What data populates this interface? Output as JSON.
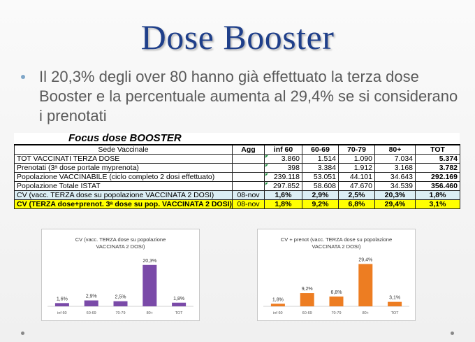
{
  "slide": {
    "title": "Dose Booster",
    "bullet": "Il 20,3% degli over 80 hanno già effettuato la terza dose Booster e la percentuale aumenta al 29,4% se si considerano i prenotati"
  },
  "table": {
    "title": "Focus dose BOOSTER",
    "headers": [
      "Sede Vaccinale",
      "Agg",
      "inf 60",
      "60-69",
      "70-79",
      "80+",
      "TOT"
    ],
    "rows": [
      {
        "label": "TOT VACCINATI TERZA DOSE",
        "agg": "",
        "values": [
          "3.860",
          "1.514",
          "1.090",
          "7.034",
          "5.374"
        ]
      },
      {
        "label": "Prenotati (3ᵃ dose portale myprenota)",
        "agg": "",
        "values": [
          "398",
          "3.384",
          "1.912",
          "3.168",
          "3.782"
        ]
      },
      {
        "label": "Popolazione VACCINABILE (ciclo completo 2 dosi effettuato)",
        "agg": "",
        "values": [
          "239.118",
          "53.051",
          "44.101",
          "34.643",
          "292.169"
        ]
      },
      {
        "label": "Popolazione Totale ISTAT",
        "agg": "",
        "values": [
          "297.852",
          "58.608",
          "47.670",
          "34.539",
          "356.460"
        ]
      },
      {
        "label": "CV (vacc. TERZA dose su popolazione VACCINATA 2 DOSI)",
        "agg": "08-nov",
        "values": [
          "1,6%",
          "2,9%",
          "2,5%",
          "20,3%",
          "1,8%"
        ]
      },
      {
        "label": "CV (TERZA dose+prenot. 3ᵃ dose su pop. VACCINATA 2 DOSI)",
        "agg": "08-nov",
        "values": [
          "1,8%",
          "9,2%",
          "6,8%",
          "29,4%",
          "3,1%"
        ]
      }
    ]
  },
  "chart_data": [
    {
      "type": "bar",
      "title": "CV (vacc. TERZA dose su popolazione VACCINATA 2 DOSI)",
      "categories": [
        "inf 60",
        "60-69",
        "70-79",
        "80+",
        "TOT"
      ],
      "values": [
        1.6,
        2.9,
        2.5,
        20.3,
        1.8
      ],
      "labels": [
        "1,6%",
        "2,9%",
        "2,5%",
        "20,3%",
        "1,8%"
      ],
      "color": "#7a4aa8",
      "ylim": [
        0,
        24
      ],
      "grid": false
    },
    {
      "type": "bar",
      "title": "CV + prenot (vacc. TERZA dose su popolazione VACCINATA 2 DOSI)",
      "categories": [
        "inf 60",
        "60-69",
        "70-79",
        "80+",
        "TOT"
      ],
      "values": [
        1.8,
        9.2,
        6.8,
        29.4,
        3.1
      ],
      "labels": [
        "1,8%",
        "9,2%",
        "6,8%",
        "29,4%",
        "3,1%"
      ],
      "color": "#ed7d22",
      "ylim": [
        0,
        34
      ],
      "grid": false
    }
  ]
}
